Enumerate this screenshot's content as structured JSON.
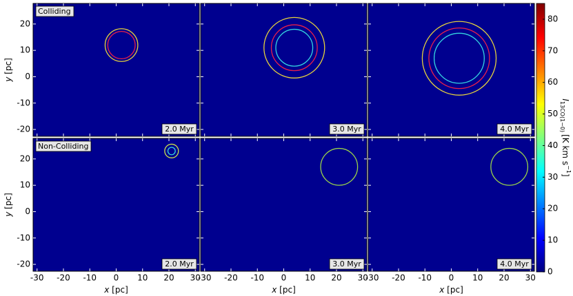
{
  "chart_data": {
    "type": "image",
    "xlabel": {
      "var": "x",
      "unit": "[pc]"
    },
    "ylabel": {
      "var": "y",
      "unit": "[pc]"
    },
    "xlim": [
      -31.5,
      31.5
    ],
    "ylim": [
      -22.6,
      27.8
    ],
    "xticks": [
      -30,
      -20,
      -10,
      0,
      10,
      20,
      30
    ],
    "yticks": [
      -20,
      -10,
      0,
      10,
      20
    ],
    "background": "#00008f",
    "rows": [
      {
        "label": "Colliding",
        "panels": [
          {
            "time": "2.0 Myr",
            "circles": [
              {
                "x": 2,
                "y": 12,
                "r": 6.2,
                "color": "#e6d23c"
              },
              {
                "x": 2,
                "y": 12,
                "r": 5.2,
                "color": "#e8204a"
              }
            ]
          },
          {
            "time": "3.0 Myr",
            "circles": [
              {
                "x": 4,
                "y": 11,
                "r": 11.5,
                "color": "#e6d23c"
              },
              {
                "x": 4,
                "y": 11,
                "r": 8.7,
                "color": "#e8204a"
              },
              {
                "x": 4,
                "y": 11,
                "r": 7,
                "color": "#35d5e0"
              }
            ]
          },
          {
            "time": "4.0 Myr",
            "circles": [
              {
                "x": 3,
                "y": 7,
                "r": 14,
                "color": "#e6d23c"
              },
              {
                "x": 3,
                "y": 7,
                "r": 11.5,
                "color": "#e8204a"
              },
              {
                "x": 3,
                "y": 7,
                "r": 9.5,
                "color": "#35d5e0"
              }
            ]
          }
        ]
      },
      {
        "label": "Non-Colliding",
        "panels": [
          {
            "time": "2.0 Myr",
            "circles": [
              {
                "x": 21,
                "y": 23,
                "r": 2.6,
                "color": "#cde04a"
              },
              {
                "x": 21,
                "y": 23,
                "r": 1.4,
                "color": "#35d5e0"
              }
            ]
          },
          {
            "time": "3.0 Myr",
            "circles": [
              {
                "x": 21,
                "y": 17,
                "r": 7,
                "color": "#9ad34a"
              }
            ]
          },
          {
            "time": "4.0 Myr",
            "circles": [
              {
                "x": 22,
                "y": 17,
                "r": 7,
                "color": "#9ad34a"
              }
            ]
          }
        ]
      }
    ],
    "colorbar": {
      "colormap": "jet",
      "lim": [
        0,
        85
      ],
      "ticks": [
        0,
        10,
        20,
        30,
        40,
        50,
        60,
        70,
        80
      ],
      "label": {
        "var": "I",
        "sub": "13CO(1−0)",
        "unit": "[K km s",
        "sup": "−1",
        "end": "]"
      }
    }
  }
}
